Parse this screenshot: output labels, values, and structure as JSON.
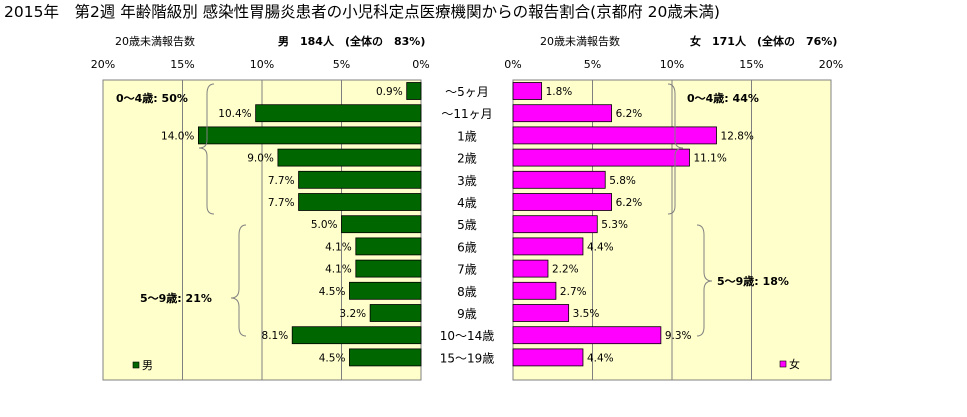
{
  "title": "2015年　第2週 年齢階級別 感染性胃腸炎患者の小児科定点医療機関からの報告割合(京都府 20歳未満)",
  "colors": {
    "male": "#006600",
    "female": "#ff00ff",
    "plot_bg": "#ffffcc",
    "axis": "#808080"
  },
  "chart_data": [
    {
      "type": "bar",
      "orientation": "horizontal",
      "side": "left",
      "subtitle_left": "20歳未満報告数",
      "subtitle_right": "男　184人　(全体の　83%)",
      "legend": "男",
      "legend_placement": "bottom-left",
      "xlim": [
        0,
        20
      ],
      "reversed": true,
      "x_ticks": [
        "20%",
        "15%",
        "10%",
        "5%",
        "0%"
      ],
      "categories": [
        "～5ヶ月",
        "～11ヶ月",
        "1歳",
        "2歳",
        "3歳",
        "4歳",
        "5歳",
        "6歳",
        "7歳",
        "8歳",
        "9歳",
        "10～14歳",
        "15～19歳"
      ],
      "values": [
        0.9,
        10.4,
        14.0,
        9.0,
        7.7,
        7.7,
        5.0,
        4.1,
        4.1,
        4.5,
        3.2,
        8.1,
        4.5
      ],
      "labels": [
        "0.9%",
        "10.4%",
        "14.0%",
        "9.0%",
        "7.7%",
        "7.7%",
        "5.0%",
        "4.1%",
        "4.1%",
        "4.5%",
        "3.2%",
        "8.1%",
        "4.5%"
      ],
      "annotations": [
        "0～4歳: 50%",
        "5～9歳: 21%"
      ]
    },
    {
      "type": "bar",
      "orientation": "horizontal",
      "side": "right",
      "subtitle_left": "20歳未満報告数",
      "subtitle_right": "女　171人　(全体の　76%)",
      "legend": "女",
      "legend_placement": "bottom-right",
      "xlim": [
        0,
        20
      ],
      "x_ticks": [
        "0%",
        "5%",
        "10%",
        "15%",
        "20%"
      ],
      "categories": [
        "～5ヶ月",
        "～11ヶ月",
        "1歳",
        "2歳",
        "3歳",
        "4歳",
        "5歳",
        "6歳",
        "7歳",
        "8歳",
        "9歳",
        "10～14歳",
        "15～19歳"
      ],
      "values": [
        1.8,
        6.2,
        12.8,
        11.1,
        5.8,
        6.2,
        5.3,
        4.4,
        2.2,
        2.7,
        3.5,
        9.3,
        4.4
      ],
      "labels": [
        "1.8%",
        "6.2%",
        "12.8%",
        "11.1%",
        "5.8%",
        "6.2%",
        "5.3%",
        "4.4%",
        "2.2%",
        "2.7%",
        "3.5%",
        "9.3%",
        "4.4%"
      ],
      "annotations": [
        "0～4歳: 44%",
        "5～9歳: 18%"
      ]
    }
  ]
}
